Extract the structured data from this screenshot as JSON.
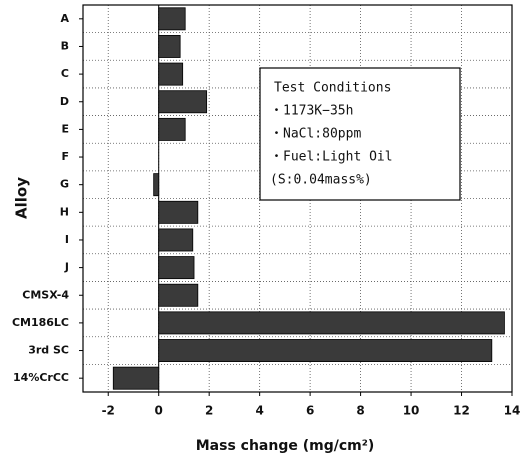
{
  "chart_data": {
    "type": "bar",
    "orientation": "horizontal",
    "xlabel": "Mass change (mg/cm²)",
    "ylabel": "Alloy",
    "categories": [
      "A",
      "B",
      "C",
      "D",
      "E",
      "F",
      "G",
      "H",
      "I",
      "J",
      "CMSX-4",
      "CM186LC",
      "3rd SC",
      "14%CrCC"
    ],
    "values": [
      1.05,
      0.85,
      0.95,
      1.9,
      1.05,
      0,
      -0.2,
      1.55,
      1.35,
      1.4,
      1.55,
      13.7,
      13.2,
      -1.8
    ],
    "color": "#3a3a3a",
    "xlim": [
      -3,
      14
    ],
    "xticks": [
      -2,
      0,
      2,
      4,
      6,
      8,
      10,
      12,
      14
    ],
    "grid": true,
    "annotations": [
      "Test Conditions",
      "・1173K−35h",
      "・NaCl:80ppm",
      "・Fuel:Light Oil",
      "(S:0.04mass%)"
    ]
  }
}
